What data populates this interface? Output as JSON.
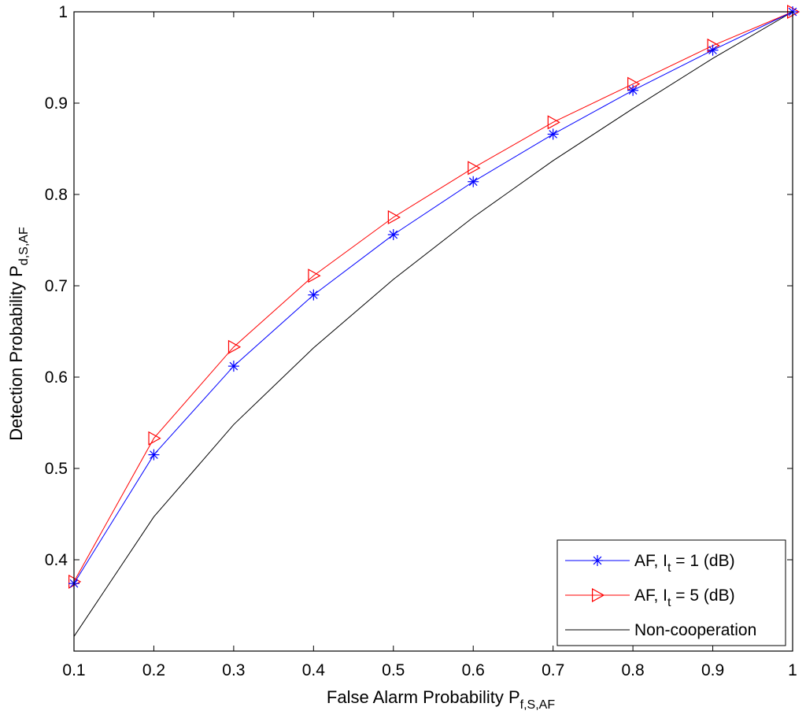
{
  "chart_data": {
    "type": "line",
    "title": "",
    "xlabel": {
      "main": "False Alarm Probability P",
      "sub": "f,S,AF"
    },
    "ylabel": {
      "main": "Detection Probability P",
      "sub": "d,S,AF"
    },
    "xlim": [
      0.1,
      1
    ],
    "ylim": [
      0.3,
      1
    ],
    "xticks": [
      0.1,
      0.2,
      0.3,
      0.4,
      0.5,
      0.6,
      0.7,
      0.8,
      0.9,
      1
    ],
    "xtick_labels": [
      "0.1",
      "0.2",
      "0.3",
      "0.4",
      "0.5",
      "0.6",
      "0.7",
      "0.8",
      "0.9",
      "1"
    ],
    "yticks": [
      0.4,
      0.5,
      0.6,
      0.7,
      0.8,
      0.9,
      1
    ],
    "ytick_labels": [
      "0.4",
      "0.5",
      "0.6",
      "0.7",
      "0.8",
      "0.9",
      "1"
    ],
    "grid": false,
    "legend_position": "bottom-right",
    "x": [
      0.1,
      0.2,
      0.3,
      0.4,
      0.5,
      0.6,
      0.7,
      0.8,
      0.9,
      1.0
    ],
    "series": [
      {
        "name": "AF, I_t = 1 (dB)",
        "legend": {
          "pre": "AF, I",
          "sub": "t",
          "post": " = 1 (dB)"
        },
        "color": "#0000ff",
        "marker": "asterisk",
        "values": [
          0.374,
          0.515,
          0.612,
          0.69,
          0.756,
          0.814,
          0.866,
          0.914,
          0.958,
          1.0
        ]
      },
      {
        "name": "AF, I_t = 5 (dB)",
        "legend": {
          "pre": "AF, I",
          "sub": "t",
          "post": " = 5 (dB)"
        },
        "color": "#ff0000",
        "marker": "triangle-right",
        "values": [
          0.376,
          0.533,
          0.633,
          0.711,
          0.775,
          0.829,
          0.879,
          0.921,
          0.963,
          1.0
        ]
      },
      {
        "name": "Non-cooperation",
        "legend": {
          "pre": "Non-cooperation",
          "sub": "",
          "post": ""
        },
        "color": "#000000",
        "marker": "none",
        "values": [
          0.316,
          0.447,
          0.548,
          0.632,
          0.707,
          0.775,
          0.837,
          0.894,
          0.949,
          1.0
        ]
      }
    ]
  }
}
